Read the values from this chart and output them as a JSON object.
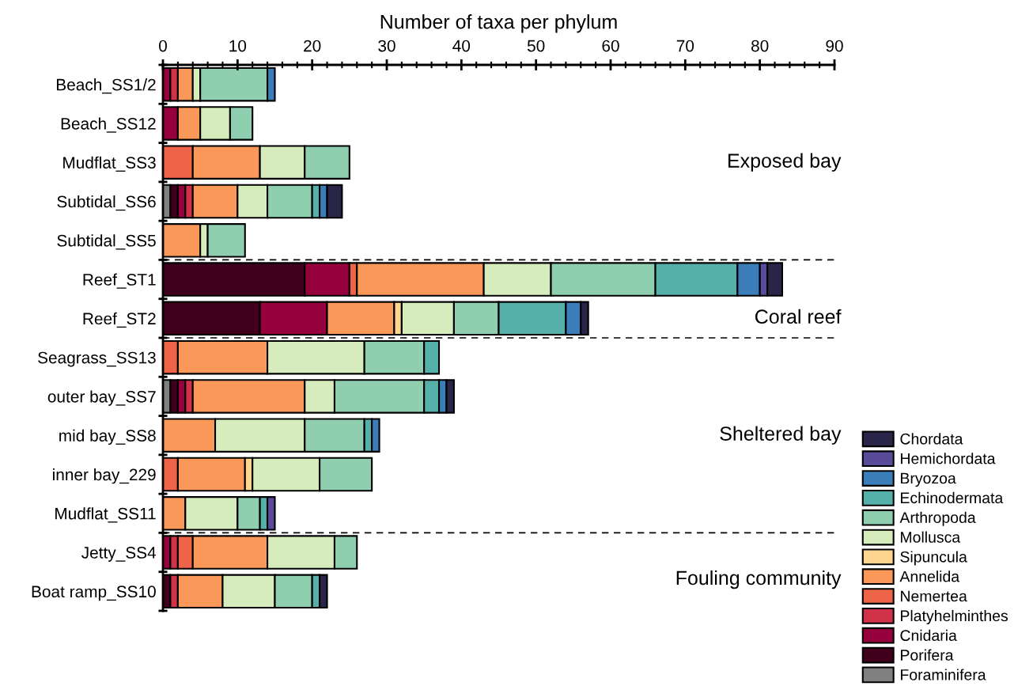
{
  "chart_data": {
    "type": "bar",
    "orientation": "horizontal",
    "stacked": true,
    "xlabel": "Number of taxa per phylum",
    "categories": [
      "Beach_SS1/2",
      "Beach_SS12",
      "Mudflat_SS3",
      "Subtidal_SS6",
      "Subtidal_SS5",
      "Reef_ST1",
      "Reef_ST2",
      "Seagrass_SS13",
      "outer bay_SS7",
      "mid bay_SS8",
      "inner bay_229",
      "Mudflat_SS11",
      "Jetty_SS4",
      "Boat ramp_SS10"
    ],
    "xlim": [
      0,
      90
    ],
    "xticks": [
      0,
      10,
      20,
      30,
      40,
      50,
      60,
      70,
      80,
      90
    ],
    "grid": false,
    "legend": "bottom right",
    "series": [
      {
        "name": "Foraminifera",
        "color": "#808080",
        "values": [
          0,
          0,
          0,
          1,
          0,
          0,
          0,
          0,
          1,
          0,
          0,
          0,
          0,
          0
        ]
      },
      {
        "name": "Porifera",
        "color": "#40001c",
        "values": [
          0,
          0,
          0,
          1,
          0,
          19,
          13,
          0,
          1,
          0,
          0,
          0,
          0,
          1
        ]
      },
      {
        "name": "Cnidaria",
        "color": "#96003c",
        "values": [
          1,
          2,
          0,
          1,
          0,
          6,
          9,
          0,
          1,
          0,
          0,
          0,
          1,
          0
        ]
      },
      {
        "name": "Platyhelminthes",
        "color": "#d0324a",
        "values": [
          1,
          0,
          0,
          1,
          0,
          0,
          0,
          0,
          1,
          0,
          0,
          0,
          1,
          1
        ]
      },
      {
        "name": "Nemertea",
        "color": "#ee6448",
        "values": [
          0,
          0,
          4,
          0,
          0,
          1,
          0,
          2,
          0,
          0,
          2,
          0,
          2,
          0
        ]
      },
      {
        "name": "Annelida",
        "color": "#f99858",
        "values": [
          2,
          3,
          9,
          6,
          5,
          17,
          9,
          12,
          15,
          7,
          9,
          3,
          10,
          6
        ]
      },
      {
        "name": "Sipuncula",
        "color": "#fed690",
        "values": [
          0,
          0,
          0,
          0,
          0,
          0,
          1,
          0,
          0,
          0,
          1,
          0,
          0,
          0
        ]
      },
      {
        "name": "Mollusca",
        "color": "#d6ecbc",
        "values": [
          1,
          4,
          6,
          4,
          1,
          9,
          7,
          13,
          4,
          12,
          9,
          7,
          9,
          7
        ]
      },
      {
        "name": "Arthropoda",
        "color": "#8fcfb0",
        "values": [
          9,
          3,
          6,
          6,
          5,
          14,
          6,
          8,
          12,
          8,
          7,
          3,
          3,
          5
        ]
      },
      {
        "name": "Echinodermata",
        "color": "#56b0aa",
        "values": [
          0,
          0,
          0,
          1,
          0,
          11,
          9,
          2,
          2,
          1,
          0,
          1,
          0,
          1
        ]
      },
      {
        "name": "Bryozoa",
        "color": "#3a7db8",
        "values": [
          1,
          0,
          0,
          1,
          0,
          3,
          2,
          0,
          1,
          1,
          0,
          0,
          0,
          0
        ]
      },
      {
        "name": "Hemichordata",
        "color": "#5a4a9a",
        "values": [
          0,
          0,
          0,
          0,
          0,
          1,
          0,
          0,
          0,
          0,
          0,
          1,
          0,
          0
        ]
      },
      {
        "name": "Chordata",
        "color": "#282548",
        "values": [
          0,
          0,
          0,
          2,
          0,
          2,
          1,
          0,
          1,
          0,
          0,
          0,
          0,
          1
        ]
      }
    ],
    "annotations": [
      "Exposed bay",
      "Coral reef",
      "Sheltered bay",
      "Fouling community"
    ]
  }
}
